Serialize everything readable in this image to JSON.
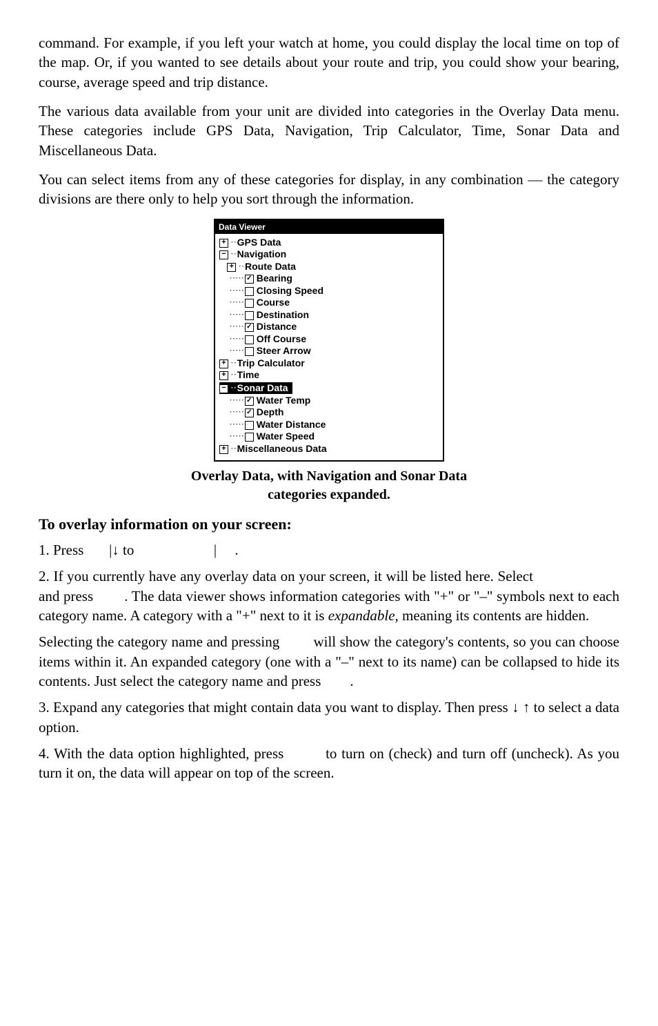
{
  "intro": {
    "p1": "command. For example, if you left your watch at home, you could display the local time on top of the map. Or, if you wanted to see details about your route and trip, you could show your bearing, course, average speed and trip distance.",
    "p2": "The various data available from your unit are divided into categories in the Overlay Data menu. These categories include GPS Data, Navigation, Trip Calculator, Time, Sonar Data and Miscellaneous Data.",
    "p3": "You can select items from any of these categories for display, in any combination — the category divisions are there only to help you sort through the information."
  },
  "viewer": {
    "title": "Data Viewer",
    "gps": "GPS Data",
    "navigation": "Navigation",
    "route_data": "Route Data",
    "nav_items": {
      "bearing": "Bearing",
      "closing_speed": "Closing Speed",
      "course": "Course",
      "destination": "Destination",
      "distance": "Distance",
      "off_course": "Off Course",
      "steer_arrow": "Steer Arrow"
    },
    "nav_checked": {
      "bearing": true,
      "distance": true
    },
    "trip_calculator": "Trip Calculator",
    "time": "Time",
    "sonar_data": "Sonar Data",
    "sonar_items": {
      "water_temp": "Water Temp",
      "depth": "Depth",
      "water_distance": "Water Distance",
      "water_speed": "Water Speed"
    },
    "sonar_checked": {
      "water_temp": true,
      "depth": true
    },
    "misc": "Miscellaneous Data"
  },
  "caption": {
    "l1": "Overlay Data, with Navigation and Sonar Data",
    "l2": "categories expanded."
  },
  "heading": "To overlay information on your screen:",
  "steps": {
    "s1a": "1. Press ",
    "s1b": "|↓ to ",
    "s1c": "|",
    "s1d": ".",
    "s2a": "2. If you currently have any overlay data on your screen, it will be listed here. Select ",
    "s2b": " and press ",
    "s2c": ". The data viewer shows information categories with \"+\" or \"–\" symbols next to each category name. A category with a \"+\" next to it is ",
    "s2_em": "expandable",
    "s2d": ", meaning its contents are hidden.",
    "s3a": "Selecting the category name and pressing ",
    "s3b": " will show the category's contents, so you can choose items within it. An expanded category (one with a \"–\" next to its name) can be collapsed to hide its contents. Just select the category name and press ",
    "s3c": ".",
    "s4": "3. Expand any categories that might contain data you want to display. Then press ↓ ↑ to select a data option.",
    "s5a": "4. With the data option highlighted, press ",
    "s5b": " to turn on (check) and turn off (uncheck). As you turn it on, the data will appear on top of the screen."
  }
}
